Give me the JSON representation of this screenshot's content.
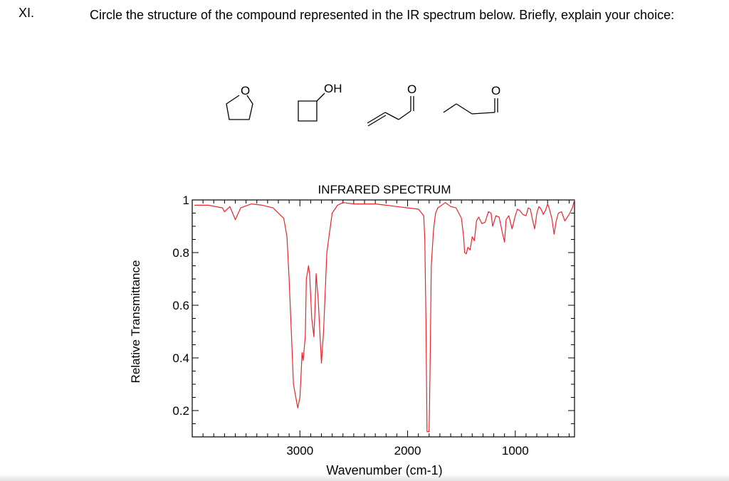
{
  "question": {
    "number": "XI.",
    "prompt": "Circle the structure of the compound represented in the IR spectrum below. Briefly, explain your choice:"
  },
  "structures": {
    "atom_labels": [
      "O",
      "OH",
      "O",
      "O"
    ]
  },
  "chart_data": {
    "type": "line",
    "title": "INFRARED SPECTRUM",
    "xlabel": "Wavenumber (cm-1)",
    "ylabel": "Relative Transmittance",
    "xlim": [
      4000,
      450
    ],
    "ylim": [
      0.1,
      1.0
    ],
    "x_ticks": [
      3000,
      2000,
      1000
    ],
    "y_ticks": [
      "0.2",
      "0.4",
      "0.6",
      "0.8",
      "1"
    ],
    "line_color": "#e8262c",
    "series": [
      {
        "x": [
          3980,
          3850,
          3720,
          3700,
          3650,
          3620,
          3600,
          3550,
          3450,
          3350,
          3250,
          3150,
          3120,
          3100,
          3080,
          3060,
          3020,
          3000,
          2990,
          2980,
          2970,
          2950,
          2940,
          2920,
          2910,
          2890,
          2870,
          2860,
          2850,
          2830,
          2800,
          2780,
          2750,
          2700,
          2650,
          2600,
          2500,
          2300,
          2200,
          2100,
          2000,
          1900,
          1850,
          1840,
          1830,
          1820,
          1810,
          1800,
          1790,
          1780,
          1760,
          1750,
          1740,
          1720,
          1700,
          1650,
          1600,
          1550,
          1500,
          1480,
          1470,
          1455,
          1440,
          1420,
          1400,
          1380,
          1360,
          1340,
          1310,
          1280,
          1250,
          1225,
          1210,
          1180,
          1150,
          1120,
          1100,
          1085,
          1060,
          1030,
          1000,
          980,
          960,
          930,
          900,
          880,
          860,
          840,
          820,
          800,
          780,
          760,
          740,
          720,
          700,
          690,
          680,
          660,
          640,
          620,
          600,
          570,
          540,
          500,
          470,
          450
        ],
        "y": [
          0.98,
          0.98,
          0.97,
          0.955,
          0.975,
          0.945,
          0.925,
          0.97,
          0.985,
          0.98,
          0.97,
          0.93,
          0.86,
          0.7,
          0.5,
          0.3,
          0.21,
          0.25,
          0.33,
          0.42,
          0.39,
          0.48,
          0.7,
          0.75,
          0.72,
          0.55,
          0.48,
          0.58,
          0.72,
          0.62,
          0.38,
          0.5,
          0.8,
          0.95,
          0.98,
          0.99,
          0.985,
          0.985,
          0.98,
          0.975,
          0.97,
          0.965,
          0.94,
          0.85,
          0.55,
          0.12,
          0.12,
          0.12,
          0.4,
          0.75,
          0.88,
          0.92,
          0.95,
          0.97,
          0.975,
          0.99,
          0.975,
          0.97,
          0.93,
          0.86,
          0.8,
          0.795,
          0.82,
          0.81,
          0.86,
          0.845,
          0.92,
          0.935,
          0.91,
          0.915,
          0.955,
          0.95,
          0.9,
          0.94,
          0.935,
          0.875,
          0.84,
          0.925,
          0.94,
          0.89,
          0.94,
          0.965,
          0.96,
          0.945,
          0.94,
          0.97,
          0.965,
          0.925,
          0.89,
          0.95,
          0.975,
          0.965,
          0.945,
          0.96,
          0.985,
          0.975,
          0.96,
          0.93,
          0.87,
          0.92,
          0.95,
          0.955,
          0.92,
          0.945,
          0.97,
          1.0
        ]
      }
    ]
  }
}
